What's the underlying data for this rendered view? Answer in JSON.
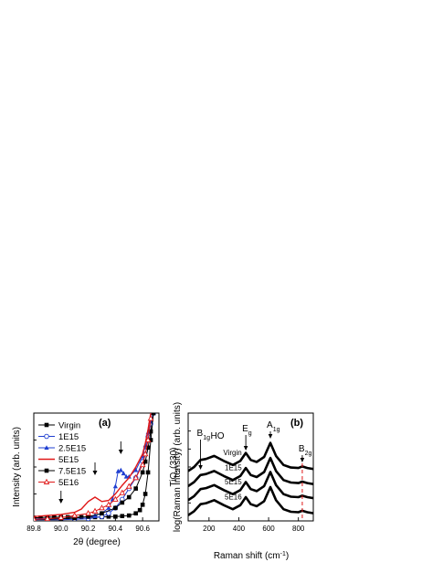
{
  "chart_data": [
    {
      "panel_label": "(a)",
      "type": "line",
      "xlabel_parts": [
        "2",
        "θ",
        " (degree)"
      ],
      "ylabel": "Intensity (arb. units)",
      "xlim": [
        89.8,
        90.72
      ],
      "ylim": [
        0,
        1
      ],
      "x_ticks": [
        89.8,
        90.0,
        90.2,
        90.4,
        90.6
      ],
      "x_tick_labels": [
        "89.8",
        "90.0",
        "90.2",
        "90.4",
        "90.6"
      ],
      "peak_label": {
        "text": "TiO",
        "sub": "2",
        "rest": "(330)"
      },
      "series": [
        {
          "name": "Virgin",
          "color": "#000000",
          "marker": "square-filled",
          "x": [
            89.8,
            89.85,
            89.9,
            89.95,
            90.0,
            90.05,
            90.1,
            90.15,
            90.2,
            90.25,
            90.3,
            90.35,
            90.4,
            90.45,
            90.5,
            90.55,
            90.58,
            90.6,
            90.62,
            90.64,
            90.66,
            90.68
          ],
          "y": [
            0.03,
            0.03,
            0.035,
            0.035,
            0.035,
            0.035,
            0.035,
            0.035,
            0.035,
            0.035,
            0.035,
            0.04,
            0.04,
            0.045,
            0.05,
            0.07,
            0.1,
            0.15,
            0.25,
            0.45,
            0.75,
            1.0
          ]
        },
        {
          "name": "1E15",
          "color": "#1f3fd1",
          "marker": "circle-open",
          "x": [
            89.8,
            89.9,
            90.0,
            90.1,
            90.2,
            90.3,
            90.35,
            90.4,
            90.45,
            90.5,
            90.55,
            90.6,
            90.62,
            90.64,
            90.66,
            90.68
          ],
          "y": [
            0.01,
            0.01,
            0.01,
            0.015,
            0.02,
            0.04,
            0.07,
            0.12,
            0.2,
            0.3,
            0.4,
            0.55,
            0.65,
            0.78,
            0.9,
            1.0
          ]
        },
        {
          "name": "2.5E15",
          "color": "#1f3fd1",
          "marker": "triangle-filled",
          "x": [
            89.8,
            89.9,
            90.0,
            90.1,
            90.2,
            90.25,
            90.3,
            90.35,
            90.38,
            90.4,
            90.42,
            90.44,
            90.46,
            90.48,
            90.5,
            90.55,
            90.6,
            90.62,
            90.64,
            90.66,
            90.68
          ],
          "y": [
            0.02,
            0.02,
            0.02,
            0.025,
            0.035,
            0.05,
            0.07,
            0.12,
            0.2,
            0.32,
            0.46,
            0.47,
            0.44,
            0.41,
            0.41,
            0.47,
            0.6,
            0.7,
            0.82,
            0.92,
            1.0
          ]
        },
        {
          "name": "5E15",
          "color": "#e01818",
          "marker": "none",
          "x": [
            89.8,
            89.9,
            90.0,
            90.1,
            90.15,
            90.2,
            90.25,
            90.3,
            90.35,
            90.4,
            90.45,
            90.5,
            90.55,
            90.6,
            90.62,
            90.64,
            90.66
          ],
          "y": [
            0.04,
            0.05,
            0.06,
            0.08,
            0.11,
            0.18,
            0.22,
            0.18,
            0.19,
            0.25,
            0.33,
            0.4,
            0.5,
            0.62,
            0.72,
            0.85,
            1.0
          ]
        },
        {
          "name": "7.5E15",
          "color": "#000000",
          "marker": "square-filled",
          "x": [
            89.8,
            89.9,
            90.0,
            90.1,
            90.2,
            90.3,
            90.4,
            90.45,
            90.5,
            90.55,
            90.6,
            90.62,
            90.64,
            90.66,
            90.68
          ],
          "y": [
            0.015,
            0.015,
            0.02,
            0.025,
            0.04,
            0.07,
            0.12,
            0.17,
            0.22,
            0.3,
            0.45,
            0.55,
            0.68,
            0.83,
            1.0
          ]
        },
        {
          "name": "5E16",
          "color": "#e01818",
          "marker": "triangle-open",
          "x": [
            89.8,
            89.9,
            90.0,
            90.1,
            90.2,
            90.25,
            90.3,
            90.35,
            90.4,
            90.45,
            90.5,
            90.55,
            90.6,
            90.62,
            90.64,
            90.66
          ],
          "y": [
            0.015,
            0.02,
            0.03,
            0.05,
            0.07,
            0.09,
            0.12,
            0.15,
            0.2,
            0.26,
            0.32,
            0.4,
            0.52,
            0.62,
            0.75,
            0.95
          ]
        }
      ],
      "arrows_x": [
        90.0,
        90.25,
        90.44
      ],
      "legend_placement": "top-left"
    },
    {
      "panel_label": "(b)",
      "type": "line",
      "xlabel_parts": [
        "Raman shift (cm",
        "-1",
        ")"
      ],
      "ylabel": "log(Raman intensity) (arb. units)",
      "xlim": [
        60,
        900
      ],
      "ylim": [
        0,
        1
      ],
      "x_ticks": [
        200,
        400,
        600,
        800
      ],
      "x_tick_labels": [
        "200",
        "400",
        "600",
        "800"
      ],
      "peaks": [
        {
          "base": "B",
          "sub": "1g",
          "rest": "",
          "x": 143
        },
        {
          "base": "HO",
          "sub": "",
          "rest": "",
          "x": 235
        },
        {
          "base": "E",
          "sub": "g",
          "rest": "",
          "x": 447
        },
        {
          "base": "A",
          "sub": "1g",
          "rest": "",
          "x": 612
        },
        {
          "base": "B",
          "sub": "2g",
          "rest": "",
          "x": 826
        }
      ],
      "dashed_line_x": 826,
      "series": [
        {
          "name": "Virgin",
          "offset": 0.44
        },
        {
          "name": "1E15",
          "offset": 0.29
        },
        {
          "name": "5E15",
          "offset": 0.15
        },
        {
          "name": "5E16",
          "offset": 0.0
        }
      ],
      "spectrum_profile": {
        "x": [
          60,
          100,
          143,
          180,
          235,
          300,
          360,
          410,
          447,
          480,
          520,
          570,
          612,
          650,
          700,
          750,
          800,
          826,
          860,
          900
        ],
        "y": [
          0.02,
          0.06,
          0.13,
          0.14,
          0.17,
          0.12,
          0.08,
          0.12,
          0.2,
          0.13,
          0.11,
          0.16,
          0.3,
          0.17,
          0.08,
          0.055,
          0.05,
          0.065,
          0.05,
          0.04
        ]
      }
    }
  ]
}
